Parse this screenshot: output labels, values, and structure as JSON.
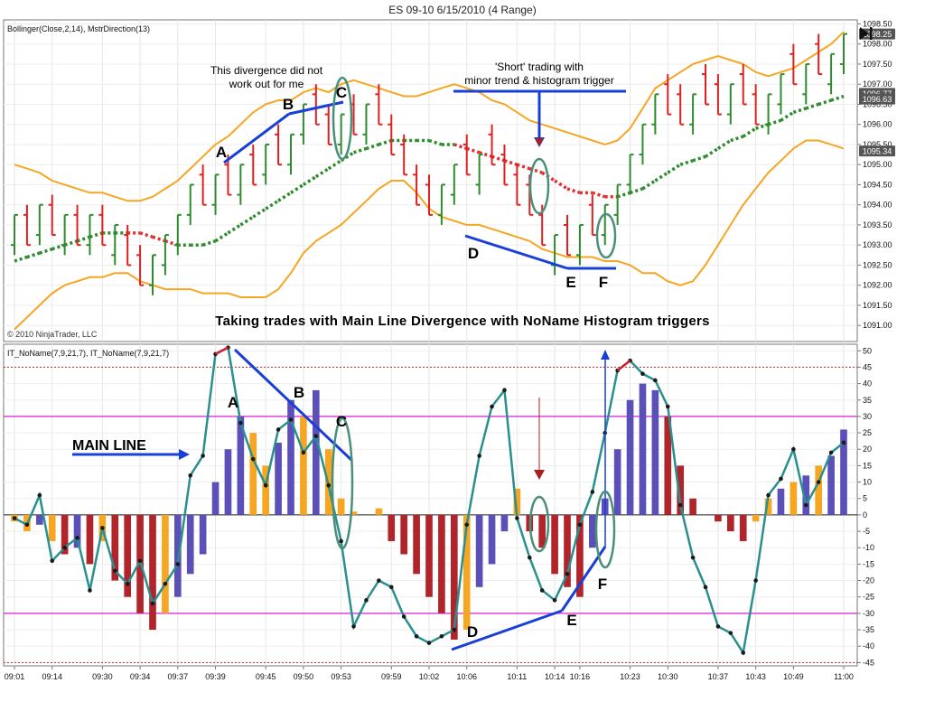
{
  "window_title": "ES 09-10  6/15/2010 (4 Range)",
  "play_icon": "skip-to-end-icon",
  "copyright": "© 2010 NinjaTrader, LLC",
  "colors": {
    "up_bar": "#2e8b2e",
    "down_bar": "#e02020",
    "bollinger": "#f5a623",
    "direction": "#2e8b2e",
    "direction_down": "#e03030",
    "main_line": "#2a8f8f",
    "purple": "#5b4fb8",
    "dark_red": "#b0242a",
    "orange": "#f5a623",
    "blue": "#1a3fd6",
    "magenta": "#e040e0",
    "ellipse": "#4a8f7a"
  },
  "top_panel": {
    "indicator_label": "Bollinger(Close,2,14), MstrDirection(13)",
    "ylim": [
      1090.6,
      1098.6
    ],
    "y_ticks": [
      "1098.50",
      "1098.00",
      "1097.50",
      "1097.00",
      "1096.50",
      "1096.00",
      "1095.50",
      "1095.00",
      "1094.50",
      "1094.00",
      "1093.50",
      "1093.00",
      "1092.50",
      "1092.00",
      "1091.50",
      "1091.00"
    ],
    "price_tags": [
      {
        "text": "1098.25",
        "value": 1098.25
      },
      {
        "text": "1096.77",
        "value": 1096.77
      },
      {
        "text": "1096.63",
        "value": 1096.63
      },
      {
        "text": "1095.34",
        "value": 1095.34
      }
    ],
    "annotations": {
      "divergence_note_1": "This divergence did not",
      "divergence_note_2": "work out for me",
      "short_note_1": "'Short' trading with",
      "short_note_2": "minor trend & histogram trigger",
      "caption": "Taking trades with Main Line Divergence with NoName Histogram triggers",
      "A": "A",
      "B": "B",
      "C": "C",
      "D": "D",
      "E": "E",
      "F": "F"
    }
  },
  "bottom_panel": {
    "indicator_label": "IT_NoName(7,9,21,7), IT_NoName(7,9,21,7)",
    "ylim": [
      -46,
      52
    ],
    "y_ticks": [
      "50",
      "45",
      "40",
      "35",
      "30",
      "25",
      "20",
      "15",
      "10",
      "5",
      "0",
      "-5",
      "-10",
      "-15",
      "-20",
      "-25",
      "-30",
      "-35",
      "-40",
      "-45"
    ],
    "levels": {
      "upper": 30,
      "lower": -30,
      "dotted_top": 45,
      "dotted_bottom": -45
    },
    "annotations": {
      "main_line": "MAIN LINE",
      "A": "A",
      "B": "B",
      "C": "C",
      "D": "D",
      "E": "E",
      "F": "F"
    }
  },
  "x_axis": {
    "tick_labels": [
      "09:01",
      "09:14",
      "09:30",
      "09:34",
      "09:37",
      "09:39",
      "09:45",
      "09:50",
      "09:53",
      "09:59",
      "10:02",
      "10:06",
      "10:11",
      "10:14",
      "10:16",
      "10:23",
      "10:30",
      "10:37",
      "10:43",
      "10:49",
      "11:00"
    ],
    "tick_bar_index": [
      0,
      3,
      7,
      10,
      13,
      16,
      20,
      23,
      26,
      30,
      33,
      36,
      40,
      43,
      45,
      49,
      52,
      56,
      59,
      62,
      66
    ]
  },
  "chart_data": [
    {
      "type": "ohlc",
      "title": "",
      "indicator": "Bollinger(Close,2,14), MstrDirection(13)",
      "xlabel": "",
      "ylabel": "",
      "ylim": [
        1090.6,
        1098.6
      ],
      "bar_range_points": 1.0,
      "x": [
        "09:01",
        "",
        "",
        "09:14",
        "",
        "",
        "",
        "09:30",
        "",
        "",
        "09:34",
        "",
        "",
        "09:37",
        "",
        "",
        "09:39",
        "",
        "",
        "",
        "09:45",
        "",
        "",
        "09:50",
        "",
        "",
        "09:53",
        "",
        "",
        "",
        "09:59",
        "",
        "",
        "10:02",
        "",
        "",
        "10:06",
        "",
        "",
        "",
        "10:11",
        "",
        "",
        "10:14",
        "",
        "10:16",
        "",
        "",
        "",
        "10:23",
        "",
        "",
        "10:30",
        "",
        "",
        "",
        "10:37",
        "",
        "",
        "10:43",
        "",
        "",
        "10:49",
        "",
        "",
        "",
        "11:00"
      ],
      "close": [
        1093.75,
        1093.0,
        1094.0,
        1093.25,
        1093.75,
        1093.0,
        1093.75,
        1093.0,
        1093.5,
        1092.5,
        1092.0,
        1092.75,
        1093.25,
        1093.75,
        1094.5,
        1094.0,
        1094.75,
        1094.25,
        1095.0,
        1094.5,
        1095.5,
        1095.0,
        1095.75,
        1096.5,
        1096.0,
        1095.5,
        1096.25,
        1095.75,
        1096.5,
        1096.0,
        1095.25,
        1094.75,
        1094.0,
        1093.75,
        1094.5,
        1095.0,
        1094.75,
        1095.25,
        1095.0,
        1094.5,
        1094.0,
        1093.75,
        1093.0,
        1093.25,
        1092.75,
        1093.5,
        1093.25,
        1094.0,
        1094.5,
        1095.25,
        1096.0,
        1096.75,
        1096.25,
        1096.0,
        1096.75,
        1096.5,
        1096.25,
        1097.0,
        1096.5,
        1096.0,
        1096.75,
        1097.25,
        1097.0,
        1097.5,
        1097.25,
        1097.75,
        1098.25
      ],
      "direction": [
        1,
        -1,
        1,
        -1,
        1,
        -1,
        1,
        -1,
        1,
        -1,
        -1,
        1,
        1,
        1,
        1,
        -1,
        1,
        -1,
        1,
        -1,
        1,
        -1,
        1,
        1,
        -1,
        -1,
        1,
        -1,
        1,
        -1,
        -1,
        -1,
        -1,
        -1,
        1,
        1,
        -1,
        1,
        -1,
        -1,
        -1,
        -1,
        -1,
        1,
        -1,
        1,
        -1,
        1,
        1,
        1,
        1,
        1,
        -1,
        -1,
        1,
        -1,
        -1,
        1,
        -1,
        -1,
        1,
        1,
        -1,
        1,
        -1,
        1,
        1
      ],
      "series": [
        {
          "name": "",
          "kind": "bollinger_upper",
          "values": [
            1095.0,
            1094.9,
            1094.8,
            1094.6,
            1094.5,
            1094.4,
            1094.3,
            1094.3,
            1094.2,
            1094.1,
            1094.1,
            1094.2,
            1094.4,
            1094.6,
            1094.9,
            1095.2,
            1095.5,
            1095.7,
            1096.0,
            1096.3,
            1096.5,
            1096.6,
            1096.6,
            1096.8,
            1096.9,
            1096.8,
            1097.0,
            1097.1,
            1097.0,
            1096.9,
            1096.8,
            1096.7,
            1096.7,
            1096.8,
            1096.9,
            1097.0,
            1096.9,
            1096.8,
            1096.6,
            1096.5,
            1096.3,
            1096.1,
            1096.0,
            1095.9,
            1095.8,
            1095.7,
            1095.6,
            1095.5,
            1095.6,
            1095.9,
            1096.4,
            1096.9,
            1097.1,
            1097.3,
            1097.5,
            1097.6,
            1097.7,
            1097.6,
            1097.5,
            1097.3,
            1097.2,
            1097.3,
            1097.4,
            1097.6,
            1097.8,
            1098.0,
            1098.3
          ]
        },
        {
          "name": "",
          "kind": "bollinger_lower",
          "values": [
            1090.9,
            1091.2,
            1091.5,
            1091.8,
            1092.0,
            1092.1,
            1092.2,
            1092.2,
            1092.3,
            1092.3,
            1092.1,
            1092.0,
            1091.9,
            1091.9,
            1091.9,
            1091.8,
            1091.8,
            1091.8,
            1091.7,
            1091.7,
            1091.7,
            1091.9,
            1092.3,
            1092.8,
            1093.1,
            1093.3,
            1093.5,
            1093.8,
            1094.1,
            1094.4,
            1094.6,
            1094.6,
            1094.3,
            1093.9,
            1093.7,
            1093.6,
            1093.5,
            1093.5,
            1093.4,
            1093.3,
            1093.2,
            1093.1,
            1092.9,
            1092.8,
            1092.7,
            1092.7,
            1092.7,
            1092.6,
            1092.6,
            1092.5,
            1092.3,
            1092.3,
            1092.1,
            1092.0,
            1092.1,
            1092.5,
            1093.0,
            1093.5,
            1094.0,
            1094.4,
            1094.8,
            1095.1,
            1095.4,
            1095.6,
            1095.6,
            1095.5,
            1095.4
          ]
        },
        {
          "name": "",
          "kind": "direction",
          "values": [
            1092.6,
            1092.7,
            1092.8,
            1092.9,
            1093.0,
            1093.1,
            1093.2,
            1093.3,
            1093.3,
            1093.3,
            1093.3,
            1093.2,
            1093.1,
            1093.0,
            1093.0,
            1093.0,
            1093.1,
            1093.3,
            1093.5,
            1093.7,
            1093.9,
            1094.1,
            1094.3,
            1094.5,
            1094.7,
            1094.9,
            1095.1,
            1095.3,
            1095.4,
            1095.5,
            1095.6,
            1095.6,
            1095.6,
            1095.6,
            1095.5,
            1095.5,
            1095.4,
            1095.3,
            1095.2,
            1095.1,
            1095.0,
            1094.9,
            1094.8,
            1094.6,
            1094.4,
            1094.3,
            1094.3,
            1094.2,
            1094.2,
            1094.3,
            1094.4,
            1094.6,
            1094.8,
            1095.0,
            1095.1,
            1095.2,
            1095.4,
            1095.6,
            1095.7,
            1095.9,
            1096.0,
            1096.1,
            1096.3,
            1096.4,
            1096.5,
            1096.6,
            1096.7
          ],
          "red_from": 9,
          "red_to": 13,
          "red2_from": 35,
          "red2_to": 48
        }
      ]
    },
    {
      "type": "histogram_line",
      "title": "",
      "indicator": "IT_NoName(7,9,21,7), IT_NoName(7,9,21,7)",
      "xlabel": "",
      "ylabel": "",
      "ylim": [
        -46,
        52
      ],
      "histogram": [
        -2,
        -5,
        -3,
        -8,
        -12,
        -10,
        -15,
        -8,
        -20,
        -25,
        -30,
        -35,
        -30,
        -25,
        -18,
        -12,
        10,
        20,
        30,
        25,
        15,
        22,
        35,
        30,
        38,
        20,
        5,
        1,
        0,
        2,
        -8,
        -12,
        -18,
        -25,
        -30,
        -38,
        -35,
        -22,
        -15,
        -5,
        8,
        -5,
        -10,
        -18,
        -22,
        -25,
        -10,
        5,
        20,
        35,
        40,
        38,
        30,
        15,
        5,
        0,
        -2,
        -5,
        -8,
        -2,
        5,
        8,
        10,
        12,
        15,
        18,
        26
      ],
      "histogram_colors": [
        "o",
        "o",
        "p",
        "o",
        "r",
        "p",
        "r",
        "o",
        "r",
        "r",
        "r",
        "r",
        "o",
        "p",
        "p",
        "p",
        "p",
        "p",
        "p",
        "o",
        "o",
        "p",
        "p",
        "o",
        "p",
        "o",
        "o",
        "o",
        "o",
        "o",
        "r",
        "r",
        "r",
        "r",
        "r",
        "r",
        "o",
        "p",
        "p",
        "p",
        "o",
        "r",
        "r",
        "r",
        "r",
        "r",
        "p",
        "p",
        "p",
        "p",
        "p",
        "p",
        "r",
        "r",
        "r",
        "o",
        "r",
        "r",
        "r",
        "o",
        "o",
        "p",
        "o",
        "p",
        "o",
        "p",
        "p"
      ],
      "series": [
        {
          "name": "",
          "kind": "main_line",
          "values": [
            -1,
            -3,
            6,
            -14,
            -10,
            -7,
            -23,
            -4,
            -17,
            -21,
            -14,
            -27,
            -21,
            -15,
            12,
            18,
            49,
            51,
            28,
            17,
            9,
            26,
            29,
            19,
            24,
            9,
            -8,
            -34,
            -26,
            -20,
            -22,
            -31,
            -37,
            -39,
            -37,
            -35,
            -3,
            18,
            33,
            38,
            -1,
            -13,
            -23,
            -26,
            -18,
            -3,
            7,
            25,
            44,
            47,
            43,
            41,
            33,
            3,
            -13,
            -22,
            -34,
            -36,
            -42,
            -20,
            6,
            11,
            20,
            3,
            10,
            19,
            22
          ]
        }
      ]
    }
  ]
}
